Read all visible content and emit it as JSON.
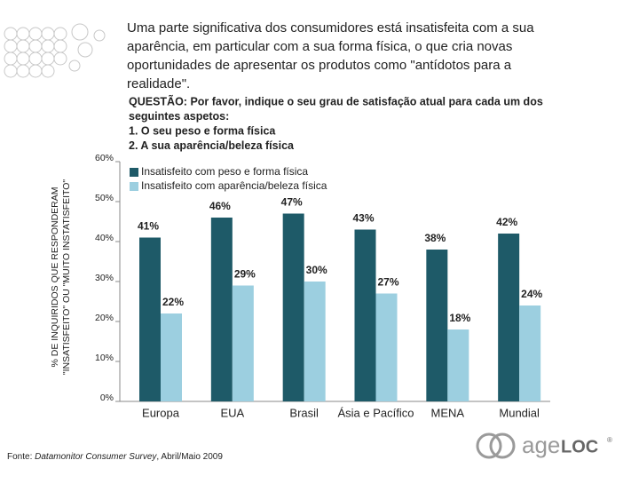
{
  "intro_lines": [
    "Uma parte significativa dos consumidores está insatisfeita com a sua",
    "aparência, em particular com a sua forma física, o que cria novas",
    "oportunidades de apresentar os produtos como \"antídotos para a",
    "realidade\"."
  ],
  "question_lines": [
    "QUESTÃO: Por favor, indique o seu grau de satisfação atual para cada um dos",
    "seguintes aspetos:",
    "1. O seu peso e forma física",
    "2. A sua aparência/beleza física"
  ],
  "chart_data": {
    "type": "bar",
    "ylabel_lines": [
      "% DE INQUIRIDOS QUE RESPONDERAM",
      "\"INSATISFEITO\" OU \"MUITO INSTATISFEITO\""
    ],
    "categories": [
      "Europa",
      "EUA",
      "Brasil",
      "Ásia e Pacífico",
      "MENA",
      "Mundial"
    ],
    "series": [
      {
        "name": "Insatisfeito com peso e forma física",
        "color": "#1e5a68",
        "values": [
          41,
          46,
          47,
          43,
          38,
          42
        ],
        "value_labels": [
          "41%",
          "46%",
          "47%",
          "43%",
          "38%",
          "42%"
        ]
      },
      {
        "name": "Insatisfeito com aparência/beleza física",
        "color": "#9ccfe0",
        "values": [
          22,
          29,
          30,
          27,
          18,
          24
        ],
        "value_labels": [
          "22%",
          "29%",
          "30%",
          "27%",
          "18%",
          "24%"
        ]
      }
    ],
    "ylim": [
      0,
      60
    ],
    "yticks": [
      {
        "value": 0,
        "label": "0%"
      },
      {
        "value": 10,
        "label": "10%"
      },
      {
        "value": 20,
        "label": "20%"
      },
      {
        "value": 30,
        "label": "30%"
      },
      {
        "value": 40,
        "label": "40%"
      },
      {
        "value": 50,
        "label": "50%"
      },
      {
        "value": 60,
        "label": "60%"
      }
    ],
    "legend": "top-left"
  },
  "source": {
    "label": "Fonte:",
    "text": "Datamonitor Consumer Survey",
    "date": ", Abril/Maio 2009"
  },
  "logo": {
    "prefix": "age",
    "suffix": "LOC",
    "mark": "®"
  }
}
